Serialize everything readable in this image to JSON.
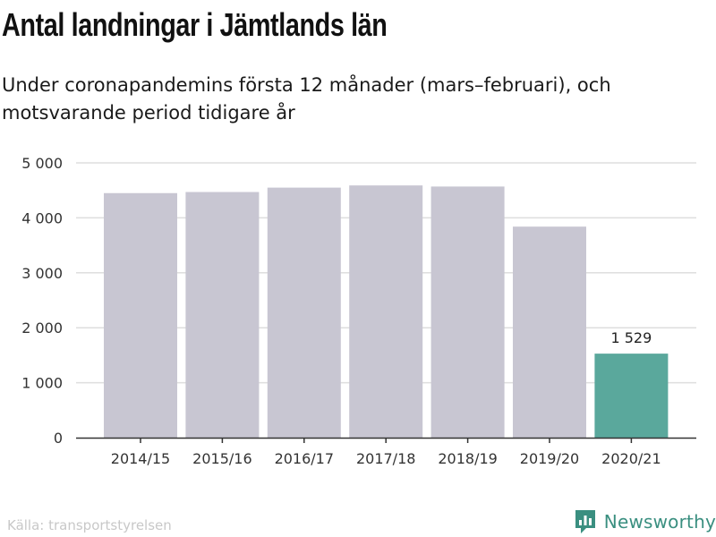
{
  "title": "Antal landningar i Jämtlands län",
  "subtitle": "Under coronapandemins första 12 månader (mars–februari), och motsvarande period tidigare år",
  "source": "Källa: transportstyrelsen",
  "brand": {
    "name": "Newsworthy",
    "icon": "newsworthy-logo-icon"
  },
  "colors": {
    "bar_default": "#c8c6d2",
    "bar_highlight": "#5aa89c",
    "grid": "#dedede",
    "axis": "#333333",
    "brand": "#3a8f80",
    "source": "#c8c8c8"
  },
  "chart_data": {
    "type": "bar",
    "title": "Antal landningar i Jämtlands län",
    "subtitle": "Under coronapandemins första 12 månader (mars–februari), och motsvarande period tidigare år",
    "xlabel": "",
    "ylabel": "",
    "categories": [
      "2014/15",
      "2015/16",
      "2016/17",
      "2017/18",
      "2018/19",
      "2019/20",
      "2020/21"
    ],
    "values": [
      4450,
      4470,
      4550,
      4590,
      4570,
      3840,
      1529
    ],
    "highlight_index": 6,
    "data_labels": [
      {
        "index": 6,
        "text": "1 529"
      }
    ],
    "ylim": [
      0,
      5000
    ],
    "yticks": [
      0,
      1000,
      2000,
      3000,
      4000,
      5000
    ],
    "ytick_labels": [
      "0",
      "1 000",
      "2 000",
      "3 000",
      "4 000",
      "5 000"
    ],
    "grid": true,
    "legend": "none"
  }
}
